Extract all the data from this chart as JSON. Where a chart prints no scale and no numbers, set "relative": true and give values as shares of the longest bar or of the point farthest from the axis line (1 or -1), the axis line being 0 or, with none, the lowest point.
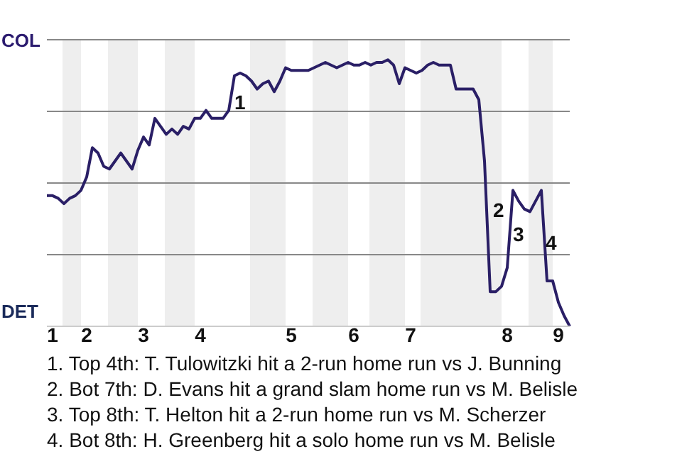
{
  "chart_data": {
    "type": "line",
    "relative": true,
    "grid": "y",
    "marker": "none",
    "line_style": "solid",
    "categories": [
      null,
      "1",
      null,
      null,
      null,
      null,
      null,
      "2",
      null,
      null,
      null,
      null,
      null,
      null,
      null,
      null,
      null,
      "3",
      null,
      null,
      null,
      null,
      null,
      null,
      null,
      null,
      null,
      "4",
      null,
      null,
      null,
      null,
      null,
      null,
      null,
      null,
      null,
      null,
      null,
      null,
      null,
      null,
      null,
      "5",
      null,
      null,
      null,
      null,
      null,
      null,
      null,
      null,
      null,
      null,
      "6",
      null,
      null,
      null,
      null,
      null,
      null,
      null,
      null,
      null,
      "7",
      null,
      null,
      null,
      null,
      null,
      null,
      null,
      null,
      null,
      null,
      null,
      null,
      null,
      null,
      null,
      null,
      "8",
      null,
      null,
      null,
      null,
      null,
      null,
      null,
      null,
      "9",
      null,
      null
    ],
    "series": [
      {
        "color": "#2a1f66",
        "values": [
          0.49,
          0.49,
          0.48,
          0.46,
          0.48,
          0.49,
          0.51,
          0.56,
          0.67,
          0.65,
          0.6,
          0.59,
          0.62,
          0.65,
          0.62,
          0.59,
          0.66,
          0.71,
          0.68,
          0.78,
          0.75,
          0.72,
          0.74,
          0.72,
          0.75,
          0.74,
          0.78,
          0.78,
          0.81,
          0.78,
          0.78,
          0.78,
          0.81,
          0.94,
          0.95,
          0.94,
          0.92,
          0.89,
          0.91,
          0.92,
          0.88,
          0.92,
          0.97,
          0.96,
          0.96,
          0.96,
          0.96,
          0.97,
          0.98,
          0.99,
          0.98,
          0.97,
          0.98,
          0.99,
          0.98,
          0.98,
          0.99,
          0.98,
          0.99,
          0.99,
          1.0,
          0.98,
          0.91,
          0.97,
          0.96,
          0.95,
          0.96,
          0.98,
          0.99,
          0.98,
          0.98,
          0.98,
          0.89,
          0.89,
          0.89,
          0.89,
          0.85,
          0.62,
          0.13,
          0.13,
          0.15,
          0.22,
          0.51,
          0.47,
          0.44,
          0.43,
          0.47,
          0.51,
          0.17,
          0.17,
          0.09,
          0.04,
          0
        ]
      }
    ],
    "annotations": [
      "COL",
      "DET",
      "1",
      "2",
      "3",
      "4",
      "1. Top 4th: T. Tulowitzki hit a 2-run home run vs J. Bunning",
      "2. Bot 7th: D. Evans hit a grand slam home run vs M. Belisle",
      "3. Top 8th: T. Helton hit a 2-run home run vs M. Scherzer",
      "4. Bot 8th: H. Greenberg hit a solo home run vs M. Belisle"
    ]
  }
}
